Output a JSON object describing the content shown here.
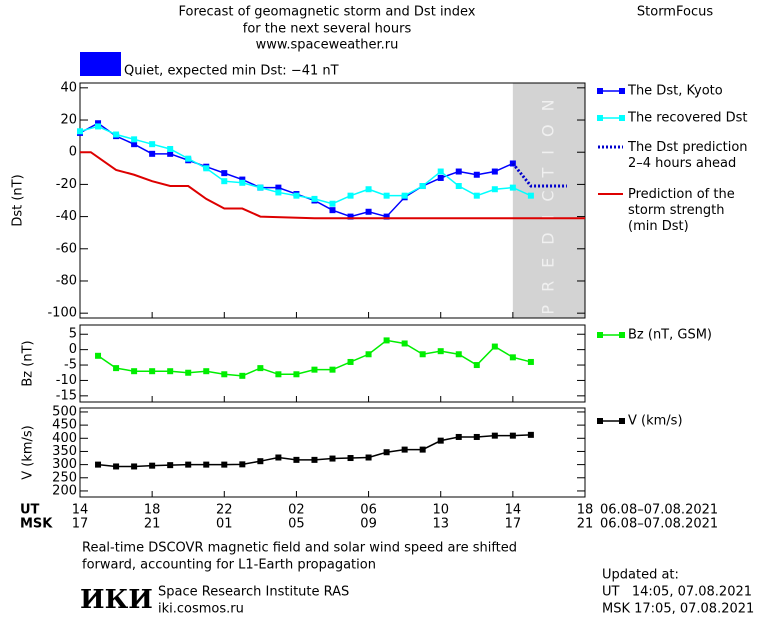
{
  "header": {
    "title_lines": [
      "Forecast of geomagnetic storm and Dst index",
      "for the next several hours",
      "www.spaceweather.ru"
    ],
    "brand": "StormFocus",
    "status": "Quiet, expected min Dst: −41 nT",
    "status_color": "#0000ff"
  },
  "time_axis": {
    "rows": [
      {
        "name": "UT",
        "dates": "06.08–07.08.2021",
        "ticks": [
          {
            "value": 0,
            "label": "14"
          },
          {
            "value": 4,
            "label": "18"
          },
          {
            "value": 8,
            "label": "22"
          },
          {
            "value": 12,
            "label": "02"
          },
          {
            "value": 16,
            "label": "06"
          },
          {
            "value": 20,
            "label": "10"
          },
          {
            "value": 24,
            "label": "14"
          },
          {
            "value": 28,
            "label": "18"
          }
        ]
      },
      {
        "name": "MSK",
        "dates": "06.08–07.08.2021",
        "ticks": [
          {
            "value": 0,
            "label": "17"
          },
          {
            "value": 4,
            "label": "21"
          },
          {
            "value": 8,
            "label": "01"
          },
          {
            "value": 12,
            "label": "05"
          },
          {
            "value": 16,
            "label": "09"
          },
          {
            "value": 20,
            "label": "13"
          },
          {
            "value": 24,
            "label": "17"
          },
          {
            "value": 28,
            "label": "21"
          }
        ]
      }
    ]
  },
  "chart_data": [
    {
      "type": "line",
      "y_label": "Dst (nT)",
      "xlim": [
        0,
        28
      ],
      "ylim": [
        -103,
        43
      ],
      "yticks": [
        40,
        20,
        0,
        -20,
        -40,
        -60,
        -80,
        -100
      ],
      "prediction_band": {
        "x": [
          24,
          28
        ],
        "label": "PREDICTION"
      },
      "series": [
        {
          "name": "The Dst, Kyoto",
          "color": "#0000ff",
          "style": "marker",
          "x": [
            0,
            1,
            2,
            3,
            4,
            5,
            6,
            7,
            8,
            9,
            10,
            11,
            12,
            13,
            14,
            15,
            16,
            17,
            18,
            19,
            20,
            21,
            22,
            23,
            24
          ],
          "values": [
            12,
            18,
            10,
            5,
            -1,
            -1,
            -5,
            -9,
            -13,
            -17,
            -22,
            -22,
            -26,
            -30,
            -36,
            -40,
            -37,
            -40,
            -28,
            -21,
            -16,
            -12,
            -14,
            -12,
            -7
          ]
        },
        {
          "name": "The recovered Dst",
          "color": "#00ffff",
          "style": "marker",
          "x": [
            0,
            1,
            2,
            3,
            4,
            5,
            6,
            7,
            8,
            9,
            10,
            11,
            12,
            13,
            14,
            15,
            16,
            17,
            18,
            19,
            20,
            21,
            22,
            23,
            24,
            25
          ],
          "values": [
            13,
            16,
            11,
            8,
            5,
            2,
            -4,
            -10,
            -18,
            -19,
            -22,
            -25,
            -27,
            -29,
            -32,
            -27,
            -23,
            -27,
            -27,
            -21,
            -12,
            -21,
            -27,
            -23,
            -22,
            -27
          ]
        },
        {
          "name": "The Dst prediction\n2–4 hours ahead",
          "color": "#0000cc",
          "style": "dotted",
          "x": [
            24,
            25,
            27
          ],
          "values": [
            -7,
            -21,
            -21
          ]
        },
        {
          "name": "Prediction of the\nstorm strength\n(min Dst)",
          "color": "#dd0000",
          "style": "line",
          "x": [
            0,
            0.6,
            2,
            3,
            4,
            5,
            6,
            7,
            8,
            9,
            10,
            13,
            28
          ],
          "values": [
            0,
            0,
            -11,
            -14,
            -18,
            -21,
            -21,
            -29,
            -35,
            -35,
            -40,
            -41,
            -41
          ]
        }
      ]
    },
    {
      "type": "line",
      "y_label": "Bz (nT)",
      "xlim": [
        0,
        28
      ],
      "ylim": [
        -17,
        8
      ],
      "yticks": [
        5,
        0,
        -5,
        -10,
        -15
      ],
      "series": [
        {
          "name": "Bz (nT, GSM)",
          "color": "#00ee00",
          "style": "marker",
          "x": [
            1,
            2,
            3,
            4,
            5,
            6,
            7,
            8,
            9,
            10,
            11,
            12,
            13,
            14,
            15,
            16,
            17,
            18,
            19,
            20,
            21,
            22,
            23,
            24,
            25
          ],
          "values": [
            -2,
            -6,
            -7,
            -7,
            -7,
            -7.5,
            -7,
            -8,
            -8.5,
            -6,
            -8,
            -8,
            -6.5,
            -6.5,
            -4,
            -1.5,
            3,
            2,
            -1.5,
            -0.5,
            -1.5,
            -5,
            1,
            -2.5,
            -4
          ]
        }
      ]
    },
    {
      "type": "line",
      "y_label": "V (km/s)",
      "xlim": [
        0,
        28
      ],
      "ylim": [
        177,
        515
      ],
      "yticks": [
        500,
        450,
        400,
        350,
        300,
        250,
        200
      ],
      "series": [
        {
          "name": "V (km/s)",
          "color": "#000000",
          "style": "marker",
          "x": [
            1,
            2,
            3,
            4,
            5,
            6,
            7,
            8,
            9,
            10,
            11,
            12,
            13,
            14,
            15,
            16,
            17,
            18,
            19,
            20,
            21,
            22,
            23,
            24,
            25
          ],
          "values": [
            300,
            293,
            293,
            296,
            298,
            300,
            300,
            300,
            301,
            313,
            327,
            318,
            318,
            323,
            325,
            327,
            347,
            357,
            357,
            391,
            405,
            405,
            410,
            410,
            413
          ]
        }
      ]
    }
  ],
  "footer": {
    "note_lines": [
      "Real-time DSCOVR magnetic field and solar wind speed are shifted",
      "forward, accounting for L1-Earth propagation"
    ],
    "logo": "ИКИ",
    "institute": "Space Research Institute RAS",
    "site": "iki.cosmos.ru",
    "updated": [
      "Updated at:",
      "UT   14:05, 07.08.2021",
      "MSK 17:05, 07.08.2021"
    ]
  }
}
